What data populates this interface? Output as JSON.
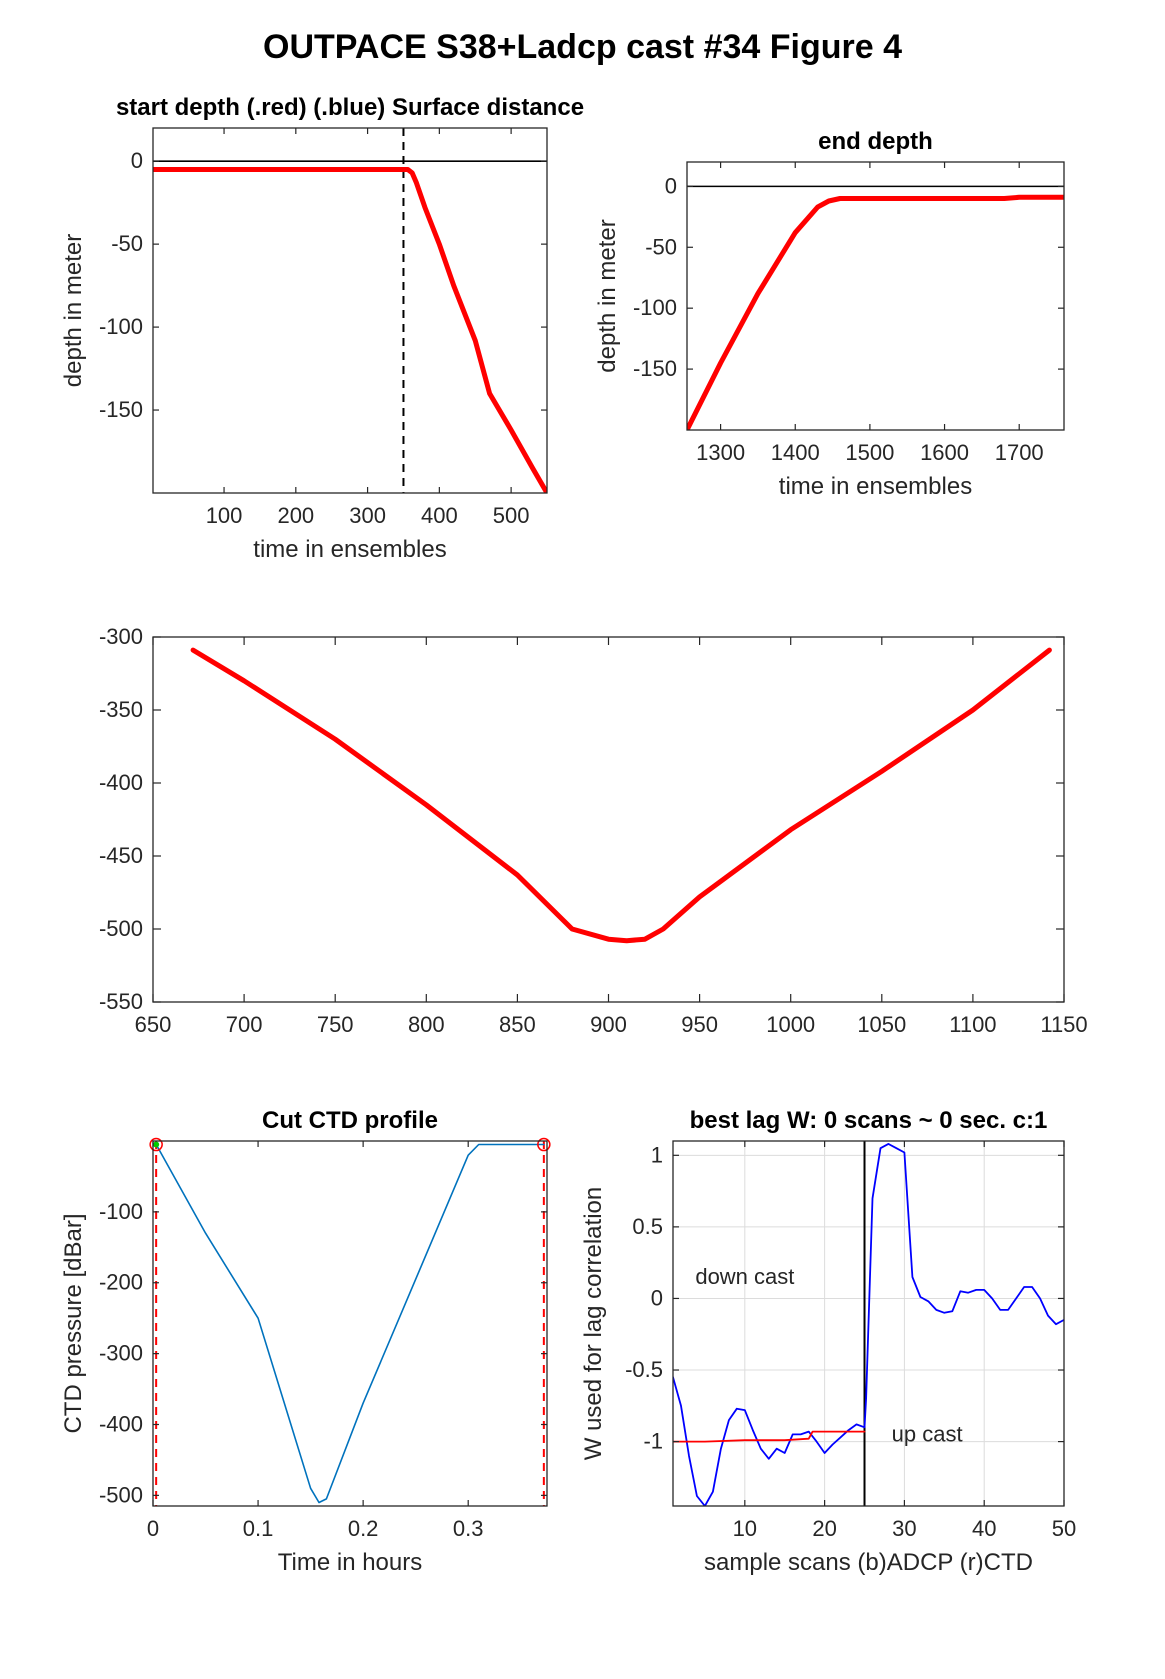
{
  "figure": {
    "title": "OUTPACE S38+Ladcp cast #34   Figure 4"
  },
  "chart_data": [
    {
      "id": "start_depth",
      "type": "line",
      "title": "start depth (.red) (.blue) Surface distance",
      "xlabel": "time in ensembles",
      "ylabel": "depth in meter",
      "xlim": [
        1,
        550
      ],
      "ylim": [
        -200,
        20
      ],
      "xticks": [
        100,
        200,
        300,
        400,
        500
      ],
      "yticks": [
        -150,
        -100,
        -50,
        0
      ],
      "reference_lines": [
        {
          "orientation": "horizontal",
          "value": 0,
          "style": "solid",
          "color": "#000000"
        },
        {
          "orientation": "vertical",
          "value": 350,
          "style": "dashed",
          "color": "#000000"
        }
      ],
      "series": [
        {
          "color": "#ff0000",
          "x": [
            1,
            100,
            200,
            300,
            350,
            356,
            362,
            368,
            380,
            400,
            420,
            450,
            470,
            500,
            530,
            550
          ],
          "y": [
            -5,
            -5,
            -5,
            -5,
            -5,
            -5,
            -7,
            -13,
            -28,
            -50,
            -75,
            -108,
            -140,
            -162,
            -185,
            -200
          ]
        }
      ]
    },
    {
      "id": "end_depth",
      "type": "line",
      "title": "end depth",
      "xlabel": "time in ensembles",
      "ylabel": "depth in meter",
      "xlim": [
        1255,
        1760
      ],
      "ylim": [
        -200,
        20
      ],
      "xticks": [
        1300,
        1400,
        1500,
        1600,
        1700
      ],
      "yticks": [
        -150,
        -100,
        -50,
        0
      ],
      "reference_lines": [
        {
          "orientation": "horizontal",
          "value": 0,
          "style": "solid",
          "color": "#000000"
        }
      ],
      "series": [
        {
          "color": "#ff0000",
          "x": [
            1255,
            1300,
            1350,
            1400,
            1430,
            1445,
            1460,
            1500,
            1600,
            1680,
            1700,
            1760
          ],
          "y": [
            -200,
            -145,
            -88,
            -38,
            -17,
            -12,
            -10,
            -10,
            -10,
            -10,
            -9,
            -9
          ]
        }
      ]
    },
    {
      "id": "middle_profile",
      "type": "line",
      "title": "",
      "xlabel": "",
      "ylabel": "",
      "xlim": [
        650,
        1150
      ],
      "ylim": [
        -550,
        -300
      ],
      "xticks": [
        650,
        700,
        750,
        800,
        850,
        900,
        950,
        1000,
        1050,
        1100,
        1150
      ],
      "yticks": [
        -550,
        -500,
        -450,
        -400,
        -350,
        -300
      ],
      "series": [
        {
          "color": "#ff0000",
          "x": [
            672,
            700,
            750,
            800,
            850,
            880,
            900,
            910,
            920,
            930,
            950,
            1000,
            1050,
            1100,
            1142
          ],
          "y": [
            -309,
            -330,
            -370,
            -415,
            -463,
            -500,
            -507,
            -508,
            -507,
            -500,
            -478,
            -432,
            -392,
            -350,
            -309
          ]
        }
      ]
    },
    {
      "id": "cut_ctd_profile",
      "type": "line",
      "title": "Cut CTD profile",
      "xlabel": "Time in hours",
      "ylabel": "CTD pressure [dBar]",
      "xlim": [
        0,
        0.375
      ],
      "ylim": [
        -515,
        0
      ],
      "xticks": [
        0,
        0.1,
        0.2,
        0.3
      ],
      "yticks": [
        -500,
        -400,
        -300,
        -200,
        -100
      ],
      "reference_lines": [
        {
          "orientation": "vertical",
          "value": 0.003,
          "style": "dashed",
          "color": "#ff0000"
        },
        {
          "orientation": "vertical",
          "value": 0.372,
          "style": "dashed",
          "color": "#ff0000"
        }
      ],
      "markers": [
        {
          "x": 0.003,
          "y": -5,
          "shape": "circle",
          "color": "#ff0000"
        },
        {
          "x": 0.372,
          "y": -5,
          "shape": "circle",
          "color": "#ff0000"
        },
        {
          "x": 0.003,
          "y": -5,
          "shape": "dot",
          "color": "#00cc00"
        }
      ],
      "series": [
        {
          "color": "#0072bd",
          "x": [
            0.003,
            0.05,
            0.1,
            0.15,
            0.158,
            0.165,
            0.2,
            0.25,
            0.3,
            0.31,
            0.372
          ],
          "y": [
            -5,
            -130,
            -250,
            -490,
            -510,
            -505,
            -370,
            -195,
            -20,
            -5,
            -5
          ]
        }
      ]
    },
    {
      "id": "best_lag",
      "type": "line",
      "title": "best lag W: 0 scans ~ 0 sec.  c:1",
      "xlabel": "sample scans (b)ADCP (r)CTD",
      "ylabel": "W used for lag correlation",
      "xlim": [
        1,
        50
      ],
      "ylim": [
        -1.45,
        1.1
      ],
      "xticks": [
        10,
        20,
        30,
        40,
        50
      ],
      "yticks": [
        -1,
        -0.5,
        0,
        0.5,
        1
      ],
      "grid": true,
      "annotations": [
        {
          "text": "down cast",
          "x": 3.8,
          "y": 0.1
        },
        {
          "text": "up cast",
          "x": 28.4,
          "y": -1.0
        }
      ],
      "reference_lines": [
        {
          "orientation": "vertical",
          "value": 25,
          "style": "solid",
          "color": "#000000"
        }
      ],
      "series": [
        {
          "color": "#0000ff",
          "x": [
            1,
            2,
            3,
            4,
            5,
            6,
            7,
            8,
            9,
            10,
            11,
            12,
            13,
            14,
            15,
            16,
            17,
            18,
            19,
            20,
            21,
            22,
            23,
            24,
            25,
            25.2,
            26,
            27,
            28,
            29,
            30,
            31,
            32,
            33,
            34,
            35,
            36,
            37,
            38,
            39,
            40,
            41,
            42,
            43,
            44,
            45,
            46,
            47,
            48,
            49,
            50
          ],
          "y": [
            -0.55,
            -0.75,
            -1.1,
            -1.38,
            -1.45,
            -1.35,
            -1.05,
            -0.85,
            -0.77,
            -0.78,
            -0.92,
            -1.05,
            -1.12,
            -1.05,
            -1.08,
            -0.95,
            -0.95,
            -0.93,
            -1.0,
            -1.08,
            -1.02,
            -0.97,
            -0.92,
            -0.88,
            -0.9,
            -0.7,
            0.7,
            1.05,
            1.08,
            1.05,
            1.02,
            0.15,
            0.01,
            -0.02,
            -0.08,
            -0.1,
            -0.09,
            0.05,
            0.04,
            0.06,
            0.06,
            0.0,
            -0.08,
            -0.08,
            0.0,
            0.08,
            0.08,
            0.0,
            -0.12,
            -0.18,
            -0.15
          ]
        },
        {
          "color": "#ff0000",
          "x": [
            1,
            5,
            10,
            15,
            18,
            18.5,
            25
          ],
          "y": [
            -1.0,
            -1.0,
            -0.99,
            -0.99,
            -0.98,
            -0.93,
            -0.93
          ]
        }
      ]
    }
  ]
}
